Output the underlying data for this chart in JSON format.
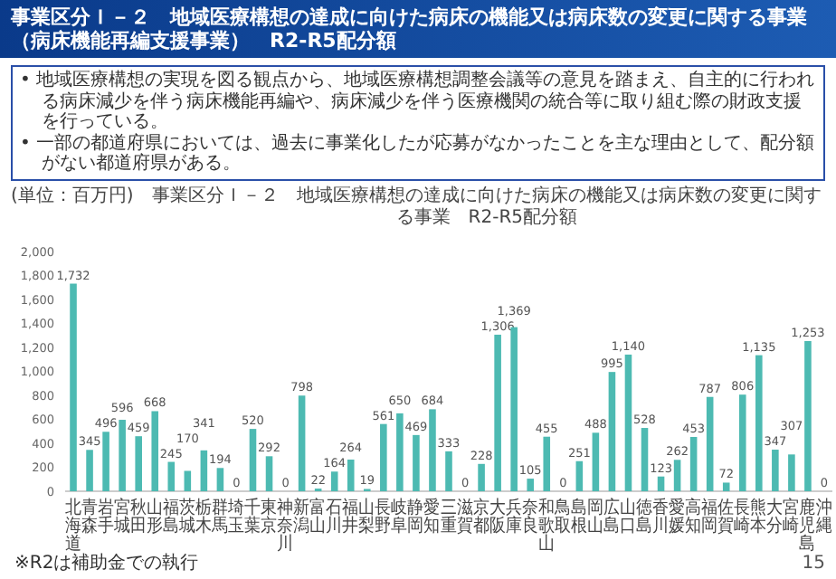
{
  "chart_data": {
    "type": "bar",
    "title": "事業区分Ｉ－２　地域医療構想の達成に向けた病床の機能又は病床数の変更に関する事業（病床機能再編支援事業）　R2-R5配分額",
    "subtitle": "事業区分Ｉ－２　地域医療構想の達成に向けた病床の機能又は病床数の変更に関する事業　R2-R5配分額",
    "ylabel": "(単位：百万円)",
    "annotations": [
      "• 地域医療構想の実現を図る観点から、地域医療構想調整会議等の意見を踏まえ、自主的に行われる病床減少を伴う病床機能再編や、病床減少を伴う医療機関の統合等に取り組む際の財政支援を行っている。",
      "• 一部の都道府県においては、過去に事業化したが応募がなかったことを主な理由として、配分額がない都道府県がある。",
      "※R2は補助金での執行",
      "15"
    ],
    "categories": [
      "北海道",
      "青森",
      "岩手",
      "宮城",
      "秋田",
      "山形",
      "福島",
      "茨城",
      "栃木",
      "群馬",
      "埼玉",
      "千葉",
      "東京",
      "神奈川",
      "新潟",
      "富山",
      "石川",
      "福井",
      "山梨",
      "長野",
      "岐阜",
      "静岡",
      "愛知",
      "三重",
      "滋賀",
      "京都",
      "大阪",
      "兵庫",
      "奈良",
      "和歌山",
      "鳥取",
      "島根",
      "岡山",
      "広島",
      "山口",
      "徳島",
      "香川",
      "愛媛",
      "高知",
      "福岡",
      "佐賀",
      "長崎",
      "熊本",
      "大分",
      "宮崎",
      "鹿児島",
      "沖縄"
    ],
    "values": [
      1732,
      345,
      496,
      596,
      459,
      668,
      245,
      170,
      341,
      194,
      0,
      520,
      292,
      0,
      798,
      22,
      164,
      264,
      19,
      561,
      650,
      469,
      684,
      333,
      0,
      228,
      1306,
      1369,
      105,
      455,
      0,
      251,
      488,
      995,
      1140,
      528,
      123,
      262,
      453,
      787,
      72,
      806,
      1135,
      347,
      307,
      1253,
      0
    ],
    "value_labels": [
      "1,732",
      "345",
      "496",
      "596",
      "459",
      "668",
      "245",
      "170",
      "341",
      "194",
      "0",
      "520",
      "292",
      "0",
      "798",
      "22",
      "164",
      "264",
      "19",
      "561",
      "650",
      "469",
      "684",
      "333",
      "0",
      "228",
      "1,306",
      "1,369",
      "105",
      "455",
      "0",
      "251",
      "488",
      "995",
      "1,140",
      "528",
      "123",
      "262",
      "453",
      "787",
      "72",
      "806",
      "1,135",
      "347",
      "307",
      "1,253",
      "0"
    ],
    "color": "#4dbab2",
    "ylim": [
      0,
      2000
    ],
    "yticks": [
      0,
      200,
      400,
      600,
      800,
      {
        "value": 1000,
        "label": "1,000"
      },
      {
        "value": 1200,
        "label": "1,200"
      },
      {
        "value": 1400,
        "label": "1,400"
      },
      {
        "value": 1600,
        "label": "1,600"
      },
      {
        "value": 1800,
        "label": "1,800"
      },
      {
        "value": 2000,
        "label": "2,000"
      }
    ],
    "grid": false
  }
}
